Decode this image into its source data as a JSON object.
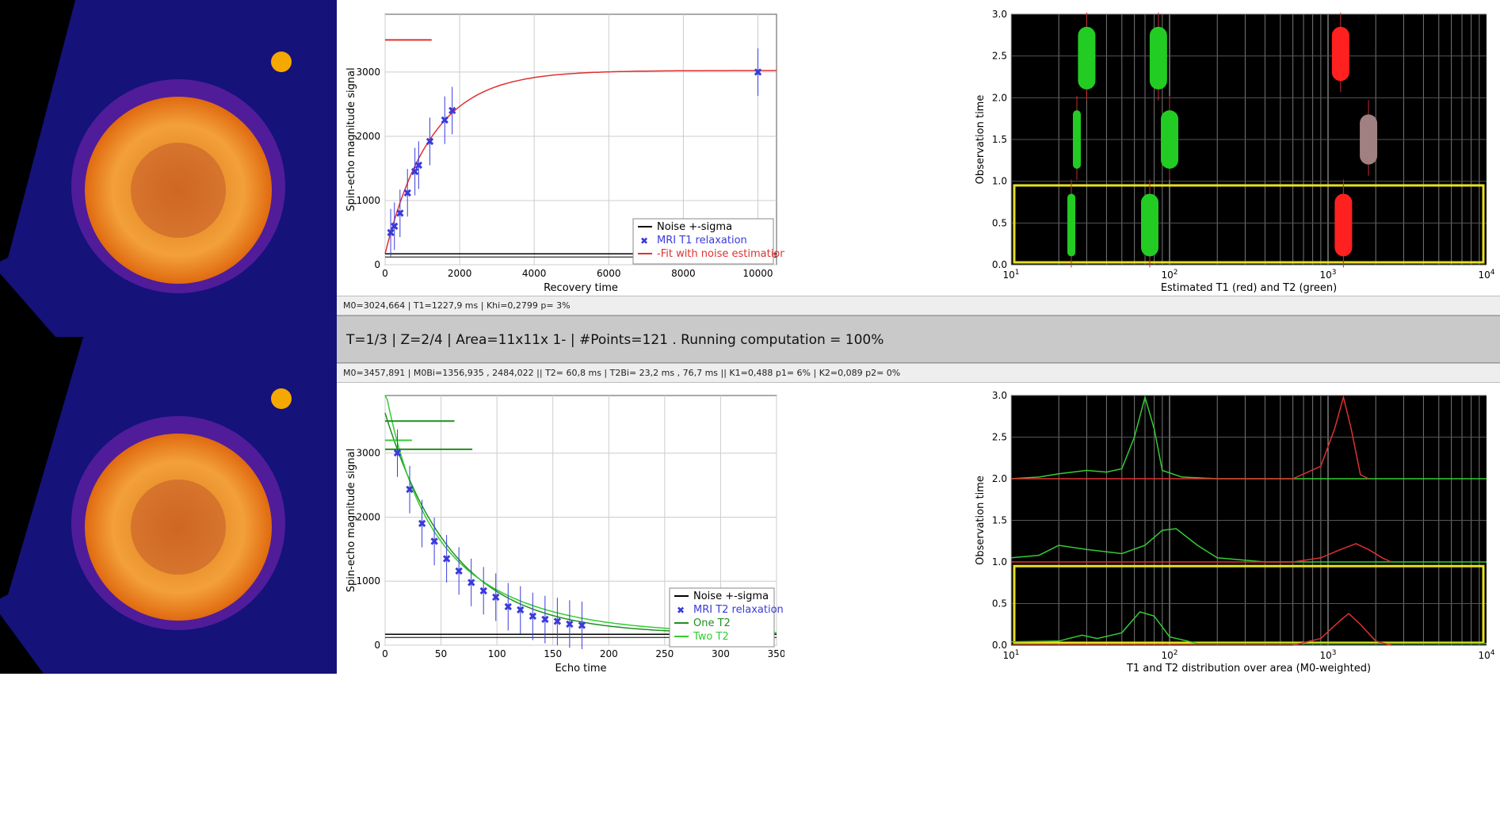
{
  "status_top": "M0=3024,664  | T1=1227,9 ms  | Khi=0,2799  p= 3%",
  "status_middle": "T=1/3  | Z=2/4 | Area=11x11x 1- | #Points=121 . Running computation = 100%",
  "status_bottom": "M0=3457,891 | M0Bi=1356,935 , 2484,022 ||  T2= 60,8 ms | T2Bi= 23,2 ms ,  76,7 ms || K1=0,488 p1= 6% | K2=0,089 p2= 0%",
  "colors": {
    "t1_fit": "#e03030",
    "t2_one": "#1f8f1f",
    "t2_two": "#33cc33",
    "marker": "#3a3adc",
    "noise": "#000000",
    "roi": "#e8e020",
    "t1_bar": "#ff2020",
    "t2_bar": "#22cc22",
    "mixed_bar": "#a08080"
  },
  "chart_data": [
    {
      "type": "scatter",
      "name_key": "t1-recovery",
      "xlabel": "Recovery time",
      "ylabel": "Spin-echo magnitude signal",
      "xlim": [
        0,
        10500
      ],
      "ylim": [
        0,
        3900
      ],
      "xticks": [
        0,
        2000,
        4000,
        6000,
        8000,
        10000
      ],
      "yticks": [
        0,
        1000,
        2000,
        3000
      ],
      "legend": [
        "Noise +-sigma",
        "MRI T1 relaxation",
        "-Fit with noise estimation"
      ],
      "legend_position": "bottom-right",
      "grid": true,
      "points": [
        [
          150,
          500
        ],
        [
          250,
          600
        ],
        [
          400,
          800
        ],
        [
          600,
          1120
        ],
        [
          800,
          1450
        ],
        [
          900,
          1550
        ],
        [
          1200,
          1920
        ],
        [
          1600,
          2250
        ],
        [
          1800,
          2400
        ],
        [
          10000,
          3000
        ]
      ],
      "fit": {
        "M0": 3024.664,
        "T1": 1227.9,
        "offset": 170
      },
      "noise_level": 170,
      "horizontal_segment": {
        "x": [
          0,
          1250
        ],
        "y": 3500
      }
    },
    {
      "type": "scatter",
      "name_key": "t2-decay",
      "xlabel": "Echo time",
      "ylabel": "Spin-echo magnitude signal",
      "xlim": [
        0,
        350
      ],
      "ylim": [
        0,
        3900
      ],
      "xticks": [
        0,
        50,
        100,
        150,
        200,
        250,
        300,
        350
      ],
      "yticks": [
        0,
        1000,
        2000,
        3000
      ],
      "legend": [
        "Noise +-sigma",
        "MRI T2 relaxation",
        "One T2",
        "Two T2"
      ],
      "legend_position": "bottom-right",
      "grid": true,
      "points": [
        [
          11,
          3000
        ],
        [
          22,
          2430
        ],
        [
          33,
          1900
        ],
        [
          44,
          1620
        ],
        [
          55,
          1350
        ],
        [
          66,
          1160
        ],
        [
          77,
          980
        ],
        [
          88,
          850
        ],
        [
          99,
          750
        ],
        [
          110,
          600
        ],
        [
          121,
          550
        ],
        [
          132,
          450
        ],
        [
          143,
          400
        ],
        [
          154,
          370
        ],
        [
          165,
          330
        ],
        [
          176,
          310
        ]
      ],
      "one_t2": {
        "M0": 3457.891,
        "T2": 60.8,
        "offset": 170
      },
      "two_t2": {
        "M1": 1356.935,
        "T2a": 23.2,
        "M2": 2484.022,
        "T2b": 76.7,
        "offset": 170
      },
      "noise_level": 170,
      "horizontal_segments": [
        {
          "x": [
            0,
            62
          ],
          "y": 3500
        },
        {
          "x": [
            0,
            24
          ],
          "y": 3200
        },
        {
          "x": [
            0,
            78
          ],
          "y": 3060
        }
      ]
    },
    {
      "type": "scatter",
      "name_key": "t1-t2-estimates",
      "xlabel": "Estimated T1 (red) and T2 (green)",
      "ylabel": "Observation time",
      "xscale": "log",
      "xlim": [
        10,
        10000
      ],
      "ylim": [
        0,
        3.0
      ],
      "xticks": [
        "10^1",
        "10^2",
        "10^3",
        "10^4"
      ],
      "yticks": [
        0.0,
        0.5,
        1.0,
        1.5,
        2.0,
        2.5,
        3.0
      ],
      "roi": {
        "y": [
          0,
          0.95
        ]
      },
      "bars": [
        {
          "x": 30,
          "y": [
            2.1,
            2.85
          ],
          "color": "t2_bar"
        },
        {
          "x": 85,
          "y": [
            2.1,
            2.85
          ],
          "color": "t2_bar"
        },
        {
          "x": 1200,
          "y": [
            2.2,
            2.85
          ],
          "color": "t1_bar"
        },
        {
          "x": 26,
          "y": [
            1.15,
            1.85
          ],
          "color": "t2_bar"
        },
        {
          "x": 100,
          "y": [
            1.15,
            1.85
          ],
          "color": "t2_bar"
        },
        {
          "x": 1800,
          "y": [
            1.2,
            1.8
          ],
          "color": "mixed_bar"
        },
        {
          "x": 24,
          "y": [
            0.1,
            0.85
          ],
          "color": "t2_bar"
        },
        {
          "x": 75,
          "y": [
            0.1,
            0.85
          ],
          "color": "t2_bar"
        },
        {
          "x": 1250,
          "y": [
            0.1,
            0.85
          ],
          "color": "t1_bar"
        }
      ]
    },
    {
      "type": "line",
      "name_key": "t1-t2-distribution",
      "xlabel": "T1 and T2 distribution over area (M0-weighted)",
      "ylabel": "Observation time",
      "xscale": "log",
      "xlim": [
        10,
        10000
      ],
      "ylim": [
        0,
        3.0
      ],
      "xticks": [
        "10^1",
        "10^2",
        "10^3",
        "10^4"
      ],
      "yticks": [
        0.0,
        0.5,
        1.0,
        1.5,
        2.0,
        2.5,
        3.0
      ],
      "roi": {
        "y": [
          0,
          0.95
        ]
      },
      "series": [
        {
          "color": "t2_two",
          "points": [
            [
              10,
              2.0
            ],
            [
              15,
              2.02
            ],
            [
              20,
              2.06
            ],
            [
              30,
              2.1
            ],
            [
              40,
              2.08
            ],
            [
              50,
              2.12
            ],
            [
              60,
              2.5
            ],
            [
              70,
              2.98
            ],
            [
              80,
              2.6
            ],
            [
              90,
              2.1
            ],
            [
              120,
              2.02
            ],
            [
              200,
              2.0
            ],
            [
              10000,
              2.0
            ]
          ]
        },
        {
          "color": "t1_fit",
          "points": [
            [
              10,
              2.0
            ],
            [
              300,
              2.0
            ],
            [
              600,
              2.0
            ],
            [
              900,
              2.15
            ],
            [
              1100,
              2.6
            ],
            [
              1250,
              2.98
            ],
            [
              1400,
              2.6
            ],
            [
              1600,
              2.05
            ],
            [
              1800,
              2.0
            ]
          ]
        },
        {
          "color": "t2_two",
          "points": [
            [
              10,
              1.05
            ],
            [
              15,
              1.08
            ],
            [
              20,
              1.2
            ],
            [
              30,
              1.15
            ],
            [
              50,
              1.1
            ],
            [
              70,
              1.2
            ],
            [
              90,
              1.38
            ],
            [
              110,
              1.4
            ],
            [
              150,
              1.2
            ],
            [
              200,
              1.05
            ],
            [
              400,
              1.0
            ],
            [
              10000,
              1.0
            ]
          ]
        },
        {
          "color": "t1_fit",
          "points": [
            [
              10,
              1.0
            ],
            [
              600,
              1.0
            ],
            [
              900,
              1.05
            ],
            [
              1200,
              1.15
            ],
            [
              1500,
              1.22
            ],
            [
              1800,
              1.15
            ],
            [
              2200,
              1.05
            ],
            [
              2500,
              1.0
            ]
          ]
        },
        {
          "color": "t2_two",
          "points": [
            [
              10,
              0.04
            ],
            [
              20,
              0.05
            ],
            [
              28,
              0.12
            ],
            [
              35,
              0.08
            ],
            [
              50,
              0.15
            ],
            [
              65,
              0.4
            ],
            [
              80,
              0.35
            ],
            [
              100,
              0.1
            ],
            [
              150,
              0.02
            ],
            [
              10000,
              0.02
            ]
          ]
        },
        {
          "color": "t1_fit",
          "points": [
            [
              10,
              0.0
            ],
            [
              600,
              0.0
            ],
            [
              900,
              0.08
            ],
            [
              1200,
              0.3
            ],
            [
              1350,
              0.38
            ],
            [
              1600,
              0.25
            ],
            [
              2000,
              0.05
            ],
            [
              2500,
              0.0
            ]
          ]
        }
      ]
    }
  ]
}
